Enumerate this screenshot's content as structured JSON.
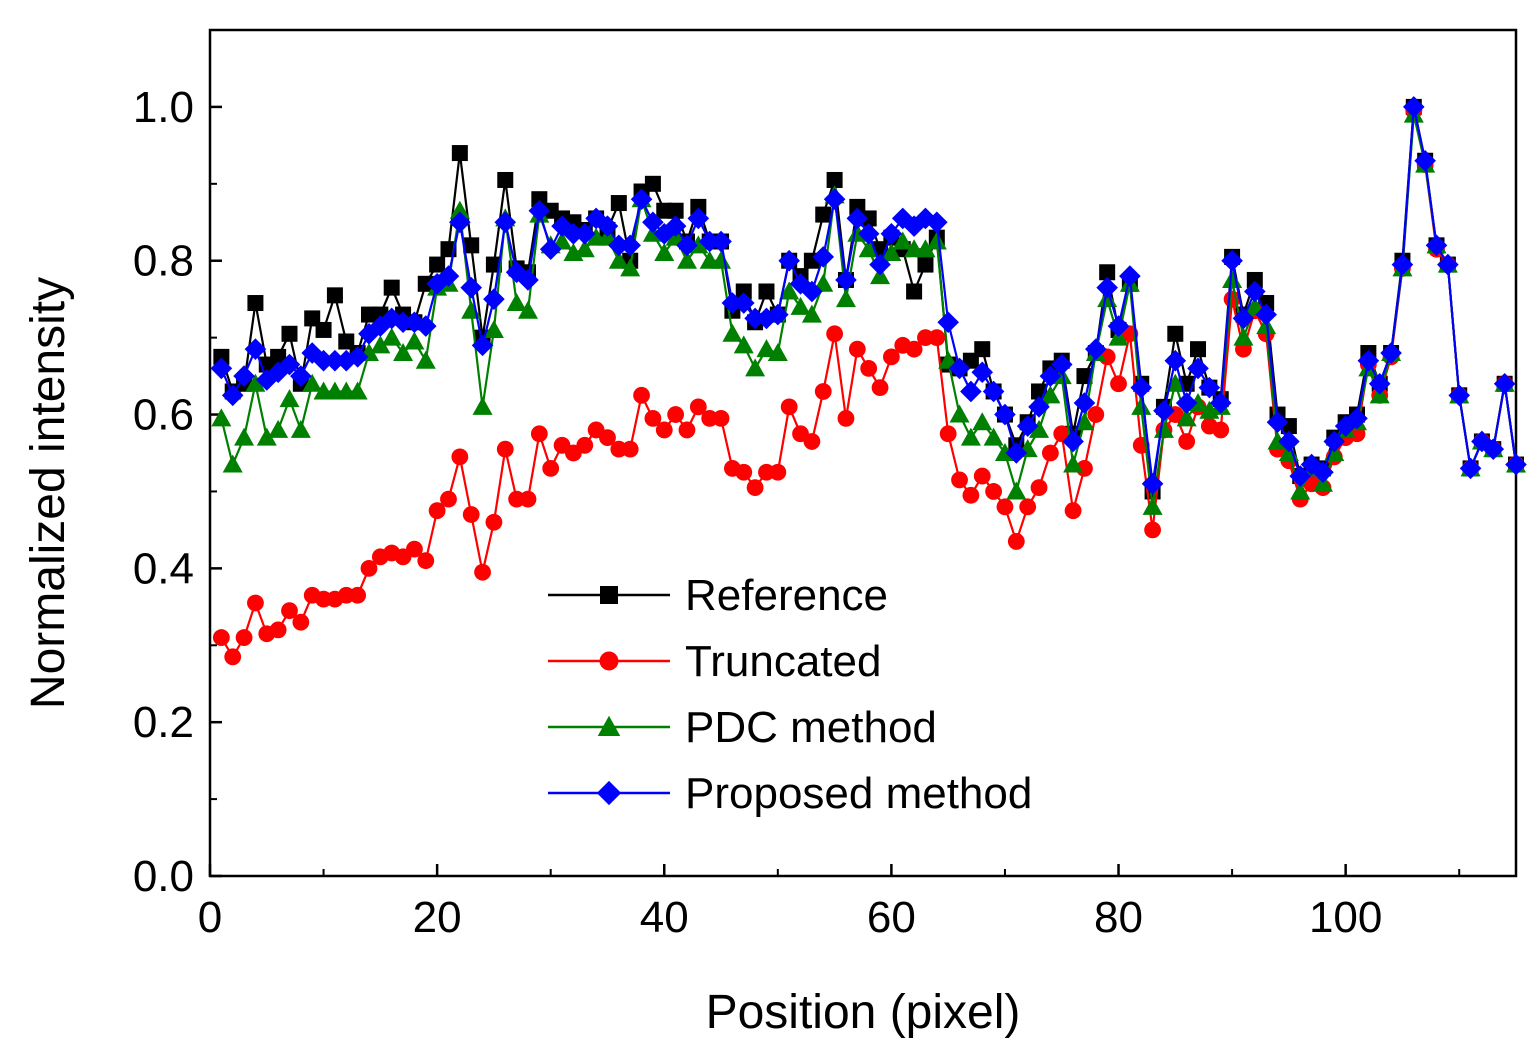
{
  "chart_data": {
    "type": "line",
    "title": "",
    "xlabel": "Position (pixel)",
    "ylabel": "Normalized intensity",
    "xlim": [
      0,
      115
    ],
    "ylim": [
      0,
      1.1
    ],
    "xticks": [
      0,
      20,
      40,
      60,
      80,
      100
    ],
    "xtick_labels": [
      "0",
      "20",
      "40",
      "60",
      "80",
      "100"
    ],
    "yticks": [
      0,
      0.2,
      0.4,
      0.6,
      0.8,
      1.0
    ],
    "ytick_labels": [
      "0.0",
      "0.2",
      "0.4",
      "0.6",
      "0.8",
      "1.0"
    ],
    "grid": false,
    "legend_position": "lower-center",
    "x": [
      1,
      2,
      3,
      4,
      5,
      6,
      7,
      8,
      9,
      10,
      11,
      12,
      13,
      14,
      15,
      16,
      17,
      18,
      19,
      20,
      21,
      22,
      23,
      24,
      25,
      26,
      27,
      28,
      29,
      30,
      31,
      32,
      33,
      34,
      35,
      36,
      37,
      38,
      39,
      40,
      41,
      42,
      43,
      44,
      45,
      46,
      47,
      48,
      49,
      50,
      51,
      52,
      53,
      54,
      55,
      56,
      57,
      58,
      59,
      60,
      61,
      62,
      63,
      64,
      65,
      66,
      67,
      68,
      69,
      70,
      71,
      72,
      73,
      74,
      75,
      76,
      77,
      78,
      79,
      80,
      81,
      82,
      83,
      84,
      85,
      86,
      87,
      88,
      89,
      90,
      91,
      92,
      93,
      94,
      95,
      96,
      97,
      98,
      99,
      100,
      101,
      102,
      103,
      104,
      105,
      106,
      107,
      108,
      109,
      110,
      111,
      112,
      113,
      114,
      115
    ],
    "series": [
      {
        "name": "Reference",
        "color": "#000000",
        "marker": "square",
        "values": [
          0.675,
          0.63,
          0.64,
          0.745,
          0.665,
          0.675,
          0.705,
          0.64,
          0.725,
          0.71,
          0.755,
          0.695,
          0.68,
          0.73,
          0.73,
          0.765,
          0.73,
          0.72,
          0.77,
          0.795,
          0.815,
          0.94,
          0.82,
          0.7,
          0.795,
          0.905,
          0.79,
          0.785,
          0.88,
          0.865,
          0.855,
          0.85,
          0.84,
          0.855,
          0.84,
          0.875,
          0.8,
          0.89,
          0.9,
          0.865,
          0.865,
          0.825,
          0.87,
          0.825,
          0.825,
          0.735,
          0.76,
          0.72,
          0.76,
          0.73,
          0.8,
          0.78,
          0.8,
          0.86,
          0.905,
          0.775,
          0.87,
          0.855,
          0.815,
          0.83,
          0.815,
          0.76,
          0.795,
          0.83,
          0.665,
          0.66,
          0.67,
          0.685,
          0.63,
          0.6,
          0.56,
          0.59,
          0.63,
          0.66,
          0.67,
          0.575,
          0.65,
          0.68,
          0.785,
          0.71,
          0.77,
          0.64,
          0.5,
          0.61,
          0.705,
          0.64,
          0.685,
          0.635,
          0.62,
          0.805,
          0.73,
          0.775,
          0.745,
          0.6,
          0.585,
          0.52,
          0.535,
          0.53,
          0.57,
          0.59,
          0.6,
          0.68,
          0.64,
          0.68,
          0.8,
          1.0,
          0.93,
          0.82,
          0.795,
          0.625,
          0.53,
          0.565,
          0.555,
          0.64,
          0.535
        ]
      },
      {
        "name": "Truncated",
        "color": "#ff0000",
        "marker": "circle",
        "values": [
          0.31,
          0.285,
          0.31,
          0.355,
          0.315,
          0.32,
          0.345,
          0.33,
          0.365,
          0.36,
          0.36,
          0.365,
          0.365,
          0.4,
          0.415,
          0.42,
          0.415,
          0.425,
          0.41,
          0.475,
          0.49,
          0.545,
          0.47,
          0.395,
          0.46,
          0.555,
          0.49,
          0.49,
          0.575,
          0.53,
          0.56,
          0.55,
          0.56,
          0.58,
          0.57,
          0.555,
          0.555,
          0.625,
          0.595,
          0.58,
          0.6,
          0.58,
          0.61,
          0.595,
          0.595,
          0.53,
          0.525,
          0.505,
          0.525,
          0.525,
          0.61,
          0.575,
          0.565,
          0.63,
          0.705,
          0.595,
          0.685,
          0.66,
          0.635,
          0.675,
          0.69,
          0.685,
          0.7,
          0.7,
          0.575,
          0.515,
          0.495,
          0.52,
          0.5,
          0.48,
          0.435,
          0.48,
          0.505,
          0.55,
          0.575,
          0.475,
          0.53,
          0.6,
          0.675,
          0.64,
          0.705,
          0.56,
          0.45,
          0.58,
          0.6,
          0.565,
          0.61,
          0.585,
          0.58,
          0.75,
          0.685,
          0.735,
          0.705,
          0.555,
          0.54,
          0.49,
          0.51,
          0.505,
          0.545,
          0.57,
          0.575,
          0.665,
          0.625,
          0.675,
          0.79,
          0.995,
          0.925,
          0.815,
          0.795,
          0.625,
          0.53,
          0.565,
          0.555,
          0.64,
          0.535
        ]
      },
      {
        "name": "PDC method",
        "color": "#008000",
        "marker": "triangle",
        "values": [
          0.595,
          0.535,
          0.57,
          0.64,
          0.57,
          0.58,
          0.62,
          0.58,
          0.64,
          0.63,
          0.63,
          0.63,
          0.63,
          0.68,
          0.69,
          0.7,
          0.68,
          0.695,
          0.67,
          0.765,
          0.77,
          0.865,
          0.735,
          0.61,
          0.71,
          0.855,
          0.745,
          0.735,
          0.86,
          0.82,
          0.825,
          0.81,
          0.815,
          0.83,
          0.83,
          0.8,
          0.79,
          0.88,
          0.835,
          0.81,
          0.83,
          0.8,
          0.82,
          0.8,
          0.8,
          0.705,
          0.69,
          0.66,
          0.685,
          0.68,
          0.76,
          0.74,
          0.73,
          0.77,
          0.885,
          0.75,
          0.835,
          0.815,
          0.78,
          0.81,
          0.825,
          0.815,
          0.815,
          0.825,
          0.67,
          0.6,
          0.57,
          0.59,
          0.57,
          0.55,
          0.5,
          0.555,
          0.58,
          0.625,
          0.65,
          0.535,
          0.59,
          0.68,
          0.75,
          0.7,
          0.77,
          0.61,
          0.48,
          0.58,
          0.64,
          0.595,
          0.615,
          0.605,
          0.61,
          0.775,
          0.7,
          0.74,
          0.715,
          0.565,
          0.55,
          0.5,
          0.53,
          0.51,
          0.55,
          0.58,
          0.59,
          0.66,
          0.625,
          0.68,
          0.79,
          0.99,
          0.925,
          0.82,
          0.795,
          0.625,
          0.53,
          0.565,
          0.555,
          0.64,
          0.535
        ]
      },
      {
        "name": "Proposed method",
        "color": "#0000ff",
        "marker": "diamond",
        "values": [
          0.66,
          0.625,
          0.65,
          0.685,
          0.645,
          0.655,
          0.665,
          0.65,
          0.68,
          0.67,
          0.67,
          0.67,
          0.675,
          0.705,
          0.715,
          0.725,
          0.72,
          0.72,
          0.715,
          0.77,
          0.78,
          0.85,
          0.765,
          0.69,
          0.75,
          0.85,
          0.785,
          0.775,
          0.865,
          0.815,
          0.845,
          0.835,
          0.835,
          0.855,
          0.845,
          0.82,
          0.82,
          0.88,
          0.85,
          0.835,
          0.845,
          0.82,
          0.855,
          0.825,
          0.825,
          0.745,
          0.745,
          0.725,
          0.725,
          0.73,
          0.8,
          0.77,
          0.76,
          0.805,
          0.88,
          0.775,
          0.855,
          0.835,
          0.795,
          0.835,
          0.855,
          0.845,
          0.855,
          0.85,
          0.72,
          0.66,
          0.63,
          0.655,
          0.63,
          0.6,
          0.55,
          0.585,
          0.61,
          0.65,
          0.665,
          0.565,
          0.615,
          0.685,
          0.765,
          0.715,
          0.78,
          0.635,
          0.51,
          0.605,
          0.67,
          0.615,
          0.66,
          0.635,
          0.615,
          0.8,
          0.725,
          0.76,
          0.73,
          0.59,
          0.565,
          0.52,
          0.535,
          0.525,
          0.565,
          0.585,
          0.595,
          0.67,
          0.64,
          0.68,
          0.795,
          1.0,
          0.93,
          0.82,
          0.795,
          0.625,
          0.53,
          0.565,
          0.555,
          0.64,
          0.535
        ]
      }
    ]
  }
}
